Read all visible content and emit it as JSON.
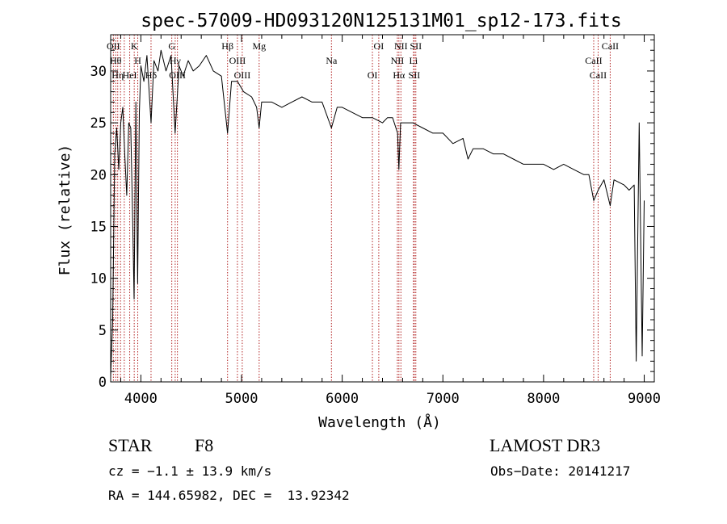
{
  "chart_data": {
    "type": "line",
    "title": "spec-57009-HD093120N125131M01_sp12-173.fits",
    "xlabel": "Wavelength (Å)",
    "ylabel": "Flux (relative)",
    "xlim": [
      3700,
      9100
    ],
    "ylim": [
      0,
      33.5
    ],
    "xticks": [
      4000,
      5000,
      6000,
      7000,
      8000,
      9000
    ],
    "yticks": [
      0,
      5,
      10,
      15,
      20,
      25,
      30
    ],
    "grid": false,
    "series": [
      {
        "color": "#000000",
        "x": [
          3700,
          3720,
          3740,
          3760,
          3780,
          3800,
          3820,
          3840,
          3860,
          3880,
          3900,
          3920,
          3933,
          3950,
          3968,
          3985,
          4000,
          4030,
          4060,
          4101,
          4130,
          4170,
          4200,
          4250,
          4300,
          4340,
          4380,
          4420,
          4470,
          4520,
          4580,
          4650,
          4720,
          4800,
          4861,
          4900,
          4960,
          5020,
          5100,
          5150,
          5175,
          5200,
          5300,
          5400,
          5500,
          5600,
          5700,
          5800,
          5893,
          5950,
          6000,
          6100,
          6200,
          6300,
          6400,
          6450,
          6500,
          6550,
          6563,
          6580,
          6620,
          6700,
          6800,
          6900,
          7000,
          7100,
          7200,
          7250,
          7300,
          7400,
          7500,
          7600,
          7700,
          7800,
          7900,
          8000,
          8100,
          8200,
          8300,
          8400,
          8450,
          8498,
          8542,
          8600,
          8662,
          8700,
          8800,
          8850,
          8900,
          8920,
          8950,
          8980,
          9000
        ],
        "y": [
          0.5,
          6.0,
          22.0,
          24.5,
          20.5,
          25.0,
          26.5,
          22.0,
          18.0,
          25.0,
          24.5,
          15.0,
          8.0,
          27.0,
          9.5,
          26.0,
          30.5,
          29.0,
          31.5,
          25.0,
          31.0,
          30.0,
          32.0,
          30.0,
          31.5,
          24.0,
          30.5,
          29.5,
          31.0,
          30.0,
          30.5,
          31.5,
          30.0,
          29.5,
          24.0,
          29.0,
          29.0,
          28.0,
          27.5,
          26.5,
          24.5,
          27.0,
          27.0,
          26.5,
          27.0,
          27.5,
          27.0,
          27.0,
          24.5,
          26.5,
          26.5,
          26.0,
          25.5,
          25.5,
          25.0,
          25.5,
          25.5,
          24.0,
          20.5,
          25.0,
          25.0,
          25.0,
          24.5,
          24.0,
          24.0,
          23.0,
          23.5,
          21.5,
          22.5,
          22.5,
          22.0,
          22.0,
          21.5,
          21.0,
          21.0,
          21.0,
          20.5,
          21.0,
          20.5,
          20.0,
          20.0,
          17.5,
          18.5,
          19.5,
          17.0,
          19.5,
          19.0,
          18.5,
          19.0,
          2.0,
          25.0,
          2.5,
          17.5
        ]
      }
    ],
    "lines": [
      {
        "x": 3727,
        "color": "#b22222",
        "labels": [
          "OII"
        ]
      },
      {
        "x": 3750,
        "color": "#b22222",
        "labels": [
          "Hθ"
        ]
      },
      {
        "x": 3770,
        "color": "#b22222",
        "labels": [
          "Hη"
        ]
      },
      {
        "x": 3798,
        "color": "#b22222",
        "labels": [
          ""
        ]
      },
      {
        "x": 3835,
        "color": "#b22222",
        "labels": [
          ""
        ]
      },
      {
        "x": 3889,
        "color": "#b22222",
        "labels": [
          "HeI"
        ]
      },
      {
        "x": 3934,
        "color": "#b22222",
        "labels": [
          "K"
        ]
      },
      {
        "x": 3969,
        "color": "#b22222",
        "labels": [
          "H"
        ]
      },
      {
        "x": 4101,
        "color": "#b22222",
        "labels": [
          "Hδ"
        ]
      },
      {
        "x": 4307,
        "color": "#b22222",
        "labels": [
          "G"
        ]
      },
      {
        "x": 4341,
        "color": "#b22222",
        "labels": [
          "Hγ"
        ]
      },
      {
        "x": 4363,
        "color": "#b22222",
        "labels": [
          "OIII"
        ]
      },
      {
        "x": 4861,
        "color": "#b22222",
        "labels": [
          "Hβ"
        ]
      },
      {
        "x": 4959,
        "color": "#b22222",
        "labels": [
          "OIII"
        ]
      },
      {
        "x": 5007,
        "color": "#b22222",
        "labels": [
          "OIII"
        ]
      },
      {
        "x": 5175,
        "color": "#b22222",
        "labels": [
          "Mg"
        ]
      },
      {
        "x": 5893,
        "color": "#b22222",
        "labels": [
          "Na"
        ]
      },
      {
        "x": 6300,
        "color": "#b22222",
        "labels": [
          "OI"
        ]
      },
      {
        "x": 6363,
        "color": "#b22222",
        "labels": [
          "OI"
        ]
      },
      {
        "x": 6548,
        "color": "#b22222",
        "labels": [
          "NII"
        ]
      },
      {
        "x": 6563,
        "color": "#b22222",
        "labels": [
          "Hα"
        ]
      },
      {
        "x": 6583,
        "color": "#b22222",
        "labels": [
          "NII"
        ]
      },
      {
        "x": 6708,
        "color": "#b22222",
        "labels": [
          "Li"
        ]
      },
      {
        "x": 6716,
        "color": "#b22222",
        "labels": [
          "SII"
        ]
      },
      {
        "x": 6731,
        "color": "#b22222",
        "labels": [
          "SII"
        ]
      },
      {
        "x": 8498,
        "color": "#b22222",
        "labels": [
          "CaII"
        ]
      },
      {
        "x": 8542,
        "color": "#b22222",
        "labels": [
          "CaII"
        ]
      },
      {
        "x": 8662,
        "color": "#b22222",
        "labels": [
          "CaII"
        ]
      }
    ]
  },
  "footer": {
    "class_label": "STAR",
    "subclass": "F8",
    "survey": "LAMOST DR3",
    "cz": "cz = −1.1 ± 13.9 km/s",
    "obs_date": "Obs−Date: 20141217",
    "coords": "RA = 144.65982, DEC =  13.92342"
  }
}
